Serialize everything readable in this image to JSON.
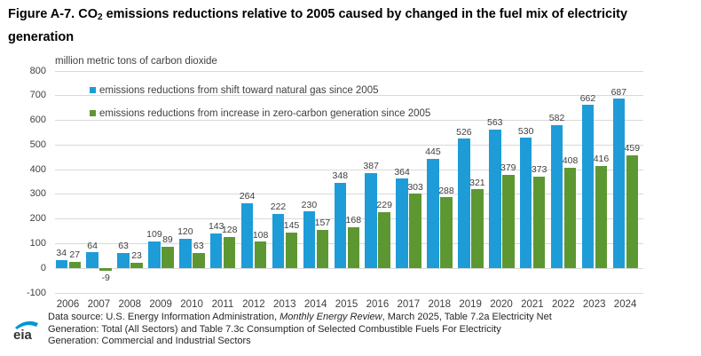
{
  "title": {
    "part1": "Figure A-7. CO",
    "sub": "2",
    "part2": " emissions reductions relative to 2005 caused by changed in the fuel mix of electricity generation"
  },
  "axis_note": "million metric tons of carbon dioxide",
  "chart_data": {
    "type": "bar",
    "title": "Figure A-7. CO2 emissions reductions relative to 2005 caused by changed in the fuel mix of electricity generation",
    "ylabel": "million metric tons of carbon dioxide",
    "xlabel": "",
    "categories": [
      "2006",
      "2007",
      "2008",
      "2009",
      "2010",
      "2011",
      "2012",
      "2013",
      "2014",
      "2015",
      "2016",
      "2017",
      "2018",
      "2019",
      "2020",
      "2021",
      "2022",
      "2023",
      "2024"
    ],
    "series": [
      {
        "name": "emissions reductions from shift toward natural gas since 2005",
        "color": "#1e9cd8",
        "values": [
          34,
          64,
          63,
          109,
          120,
          143,
          264,
          222,
          230,
          348,
          387,
          364,
          445,
          526,
          563,
          530,
          582,
          662,
          687
        ]
      },
      {
        "name": "emissions reductions from increase in zero-carbon generation since 2005",
        "color": "#5d9732",
        "values": [
          27,
          -9,
          23,
          89,
          63,
          128,
          108,
          145,
          157,
          168,
          229,
          303,
          288,
          321,
          379,
          373,
          408,
          416,
          459
        ]
      }
    ],
    "ylim": [
      -100,
      800
    ],
    "yticks": [
      800,
      700,
      600,
      500,
      400,
      300,
      200,
      100,
      0,
      -100
    ],
    "grid": true,
    "data_labels": true,
    "legend_position": "top-left-inside"
  },
  "colors": {
    "gridline": "#d9d9d9",
    "axis_text": "#404040",
    "label_text": "#404040",
    "logo_blue": "#0096d7",
    "logo_text": "#333333"
  },
  "footer": {
    "logo": "eia",
    "line1_pre": "Data source: U.S. Energy Information Administration, ",
    "line1_italic": "Monthly Energy Review",
    "line1_post": ", March 2025, Table 7.2a Electricity Net",
    "line2": "Generation: Total (All Sectors) and Table 7.3c Consumption of Selected Combustible Fuels For Electricity",
    "line3": "Generation: Commercial and Industrial Sectors"
  }
}
